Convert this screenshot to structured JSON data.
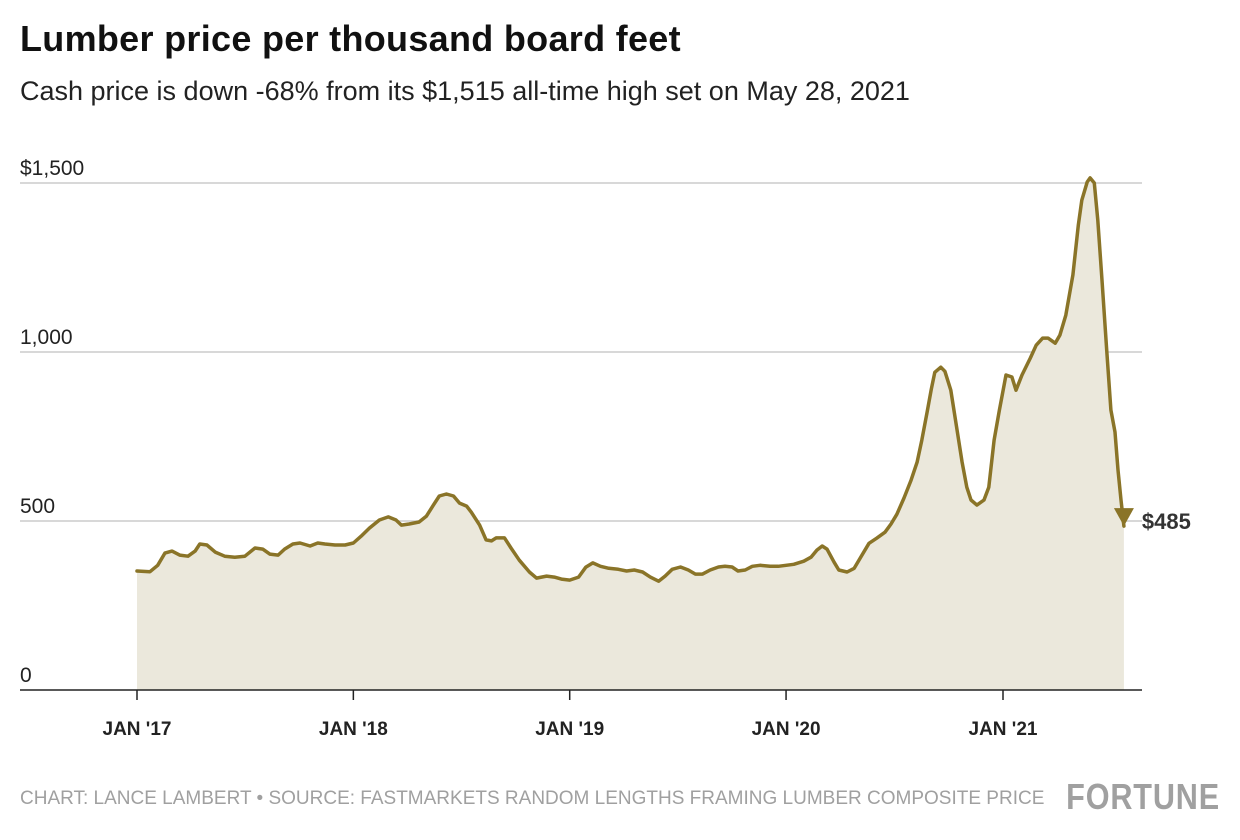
{
  "colors": {
    "line": "#8a7428",
    "fill": "#ebe8dc",
    "grid": "#cccccc",
    "axis": "#222222"
  },
  "chart_data": {
    "type": "area",
    "title": "Lumber price per thousand board feet",
    "subtitle": "Cash price is down -68% from its $1,515 all-time high set on May 28, 2021",
    "ylim": [
      0,
      1500
    ],
    "yticks": [
      0,
      500,
      1000,
      1500
    ],
    "ytick_labels": [
      "0",
      "500",
      "1,000",
      "$1,500"
    ],
    "xticks": [
      "2017-01-01",
      "2018-01-01",
      "2019-01-01",
      "2020-01-01",
      "2021-01-01"
    ],
    "xtick_labels": [
      "JAN '17",
      "JAN '18",
      "JAN '19",
      "JAN '20",
      "JAN '21"
    ],
    "grid": true,
    "end_label": "$485",
    "end_marker": "down-triangle",
    "dates": [
      "2017-01-01",
      "2017-01-23",
      "2017-02-05",
      "2017-02-17",
      "2017-03-01",
      "2017-03-14",
      "2017-03-28",
      "2017-04-09",
      "2017-04-17",
      "2017-04-29",
      "2017-05-13",
      "2017-05-29",
      "2017-06-15",
      "2017-07-02",
      "2017-07-19",
      "2017-08-01",
      "2017-08-13",
      "2017-08-27",
      "2017-09-07",
      "2017-09-21",
      "2017-10-03",
      "2017-10-20",
      "2017-11-02",
      "2017-11-14",
      "2017-12-01",
      "2017-12-18",
      "2018-01-01",
      "2018-01-14",
      "2018-01-28",
      "2018-02-14",
      "2018-03-01",
      "2018-03-14",
      "2018-03-23",
      "2018-04-05",
      "2018-04-22",
      "2018-05-04",
      "2018-05-16",
      "2018-05-26",
      "2018-06-07",
      "2018-06-19",
      "2018-06-29",
      "2018-07-11",
      "2018-07-19",
      "2018-08-02",
      "2018-08-13",
      "2018-08-22",
      "2018-08-30",
      "2018-09-13",
      "2018-09-24",
      "2018-10-08",
      "2018-10-25",
      "2018-11-06",
      "2018-11-23",
      "2018-12-06",
      "2018-12-18",
      "2019-01-01",
      "2019-01-16",
      "2019-01-28",
      "2019-02-09",
      "2019-02-22",
      "2019-03-08",
      "2019-03-24",
      "2019-04-07",
      "2019-04-20",
      "2019-05-04",
      "2019-05-17",
      "2019-05-31",
      "2019-06-11",
      "2019-06-23",
      "2019-07-07",
      "2019-07-20",
      "2019-08-01",
      "2019-08-13",
      "2019-08-26",
      "2019-09-09",
      "2019-09-20",
      "2019-10-02",
      "2019-10-12",
      "2019-10-24",
      "2019-11-05",
      "2019-11-18",
      "2019-12-05",
      "2019-12-19",
      "2020-01-01",
      "2020-01-14",
      "2020-01-31",
      "2020-02-12",
      "2020-02-22",
      "2020-03-02",
      "2020-03-10",
      "2020-03-22",
      "2020-03-30",
      "2020-04-13",
      "2020-04-25",
      "2020-05-06",
      "2020-05-20",
      "2020-06-02",
      "2020-06-16",
      "2020-06-26",
      "2020-07-06",
      "2020-07-18",
      "2020-07-30",
      "2020-08-09",
      "2020-08-17",
      "2020-08-26",
      "2020-09-02",
      "2020-09-08",
      "2020-09-18",
      "2020-09-25",
      "2020-10-05",
      "2020-10-15",
      "2020-10-24",
      "2020-11-01",
      "2020-11-08",
      "2020-11-18",
      "2020-11-30",
      "2020-12-08",
      "2020-12-17",
      "2020-12-26",
      "2021-01-06",
      "2021-01-16",
      "2021-01-23",
      "2021-02-02",
      "2021-02-16",
      "2021-02-26",
      "2021-03-09",
      "2021-03-18",
      "2021-03-30",
      "2021-04-07",
      "2021-04-17",
      "2021-04-29",
      "2021-05-08",
      "2021-05-14",
      "2021-05-23",
      "2021-05-28",
      "2021-06-04",
      "2021-06-10",
      "2021-06-17",
      "2021-06-25",
      "2021-07-02",
      "2021-07-09",
      "2021-07-14",
      "2021-07-19",
      "2021-07-24"
    ],
    "values": [
      352,
      350,
      369,
      405,
      411,
      399,
      396,
      411,
      432,
      429,
      408,
      396,
      393,
      396,
      420,
      417,
      402,
      399,
      417,
      432,
      435,
      426,
      435,
      432,
      429,
      429,
      435,
      455,
      479,
      503,
      512,
      503,
      488,
      491,
      497,
      514,
      547,
      574,
      580,
      574,
      553,
      544,
      526,
      488,
      444,
      441,
      450,
      450,
      420,
      384,
      349,
      331,
      337,
      334,
      328,
      325,
      334,
      363,
      376,
      366,
      360,
      357,
      352,
      355,
      349,
      334,
      322,
      337,
      357,
      364,
      355,
      343,
      343,
      355,
      364,
      366,
      364,
      352,
      355,
      366,
      369,
      366,
      366,
      369,
      372,
      381,
      393,
      414,
      426,
      417,
      378,
      355,
      349,
      360,
      393,
      434,
      449,
      467,
      491,
      520,
      568,
      621,
      674,
      739,
      822,
      890,
      940,
      955,
      943,
      887,
      774,
      674,
      600,
      562,
      547,
      562,
      600,
      739,
      828,
      932,
      926,
      887,
      932,
      982,
      1020,
      1041,
      1041,
      1026,
      1050,
      1109,
      1228,
      1375,
      1449,
      1503,
      1515,
      1500,
      1390,
      1212,
      1006,
      828,
      763,
      651,
      562,
      485
    ]
  },
  "footer": {
    "credit": "CHART: LANCE LAMBERT • SOURCE: FASTMARKETS RANDOM LENGTHS FRAMING LUMBER COMPOSITE PRICE",
    "logo": "FORTUNE"
  }
}
